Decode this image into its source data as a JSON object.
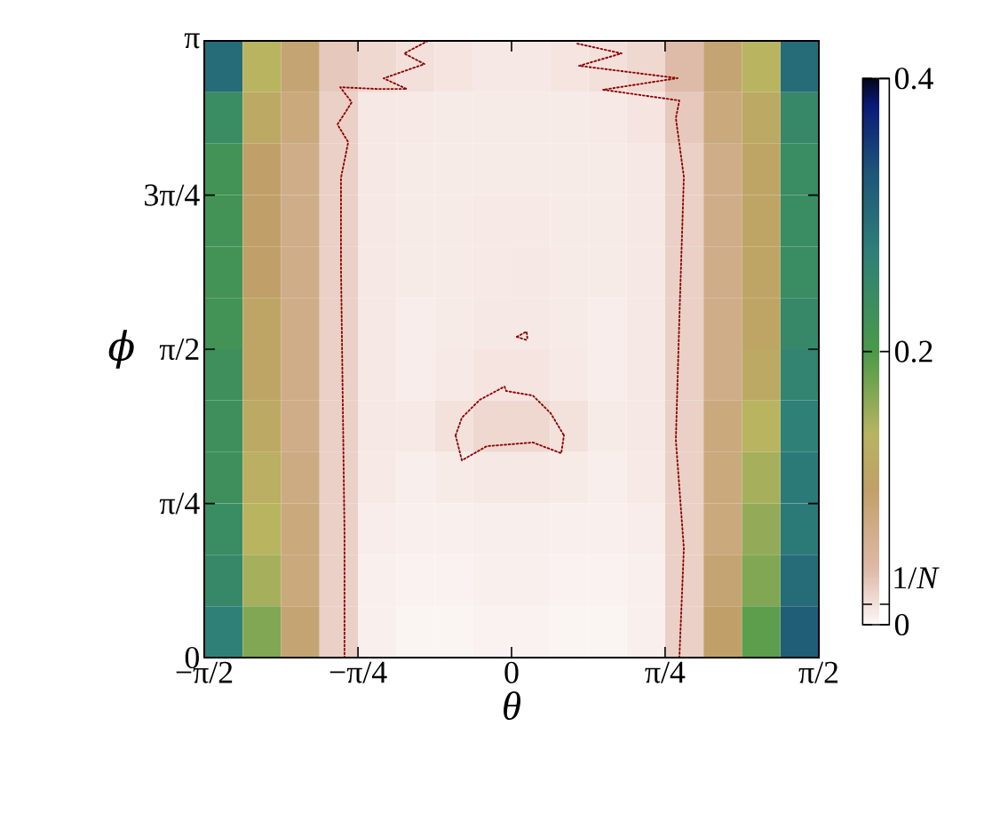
{
  "chart_data": {
    "type": "heatmap",
    "xlabel": "θ",
    "ylabel": "ϕ",
    "xlim": [
      -1.571,
      1.571
    ],
    "ylim": [
      0,
      3.142
    ],
    "xticks": [
      {
        "value": -1.571,
        "label": "−π/2"
      },
      {
        "value": -0.785,
        "label": "−π/4"
      },
      0,
      {
        "value": 0.785,
        "label": "π/4"
      },
      {
        "value": 1.571,
        "label": "π/2"
      }
    ],
    "yticks": [
      0,
      {
        "value": 0.785,
        "label": "π/4"
      },
      {
        "value": 1.571,
        "label": "π/2"
      },
      {
        "value": 2.356,
        "label": "3π/4"
      },
      {
        "value": 3.142,
        "label": "π"
      }
    ],
    "clim": [
      0,
      0.4
    ],
    "cticks": [
      0,
      {
        "value": 0.015,
        "label": null
      },
      0.2,
      0.4
    ],
    "annotations": [
      "1/*N*"
    ],
    "cells": [
      [
        0.3,
        0.14,
        0.09,
        0.03,
        0.02,
        0.015,
        0.012,
        0.01,
        0.01,
        0.012,
        0.015,
        0.02,
        0.04,
        0.09,
        0.14,
        0.3
      ],
      [
        0.24,
        0.12,
        0.08,
        0.025,
        0.01,
        0.009,
        0.008,
        0.008,
        0.008,
        0.008,
        0.009,
        0.012,
        0.03,
        0.08,
        0.12,
        0.25
      ],
      [
        0.22,
        0.1,
        0.07,
        0.025,
        0.01,
        0.008,
        0.008,
        0.008,
        0.008,
        0.008,
        0.008,
        0.01,
        0.025,
        0.07,
        0.11,
        0.24
      ],
      [
        0.22,
        0.1,
        0.07,
        0.025,
        0.01,
        0.008,
        0.008,
        0.009,
        0.009,
        0.008,
        0.008,
        0.01,
        0.025,
        0.07,
        0.11,
        0.24
      ],
      [
        0.22,
        0.1,
        0.07,
        0.025,
        0.01,
        0.008,
        0.008,
        0.009,
        0.01,
        0.008,
        0.008,
        0.01,
        0.025,
        0.07,
        0.11,
        0.24
      ],
      [
        0.22,
        0.11,
        0.07,
        0.025,
        0.01,
        0.007,
        0.008,
        0.01,
        0.01,
        0.008,
        0.007,
        0.01,
        0.025,
        0.07,
        0.11,
        0.25
      ],
      [
        0.23,
        0.11,
        0.07,
        0.025,
        0.01,
        0.007,
        0.009,
        0.012,
        0.012,
        0.009,
        0.007,
        0.01,
        0.025,
        0.07,
        0.12,
        0.26
      ],
      [
        0.23,
        0.12,
        0.07,
        0.025,
        0.01,
        0.009,
        0.014,
        0.02,
        0.02,
        0.014,
        0.008,
        0.01,
        0.025,
        0.08,
        0.14,
        0.27
      ],
      [
        0.23,
        0.13,
        0.075,
        0.025,
        0.009,
        0.006,
        0.008,
        0.01,
        0.01,
        0.008,
        0.006,
        0.009,
        0.025,
        0.08,
        0.15,
        0.28
      ],
      [
        0.24,
        0.14,
        0.08,
        0.025,
        0.007,
        0.005,
        0.005,
        0.006,
        0.006,
        0.005,
        0.005,
        0.007,
        0.025,
        0.08,
        0.16,
        0.28
      ],
      [
        0.25,
        0.15,
        0.08,
        0.025,
        0.005,
        0.004,
        0.004,
        0.005,
        0.005,
        0.004,
        0.004,
        0.005,
        0.025,
        0.09,
        0.17,
        0.3
      ],
      [
        0.27,
        0.17,
        0.09,
        0.025,
        0.005,
        0.003,
        0.003,
        0.004,
        0.004,
        0.003,
        0.003,
        0.005,
        0.025,
        0.1,
        0.19,
        0.32
      ]
    ],
    "line_style": "dotted",
    "series": [
      {
        "type": "line",
        "color": "#8b0000",
        "x": [
          -0.427,
          -0.549,
          -0.445,
          -0.654,
          -0.536,
          -0.686,
          -0.876,
          -0.817,
          -0.89,
          -0.835,
          -0.872,
          -0.872,
          -0.863,
          -0.854,
          -0.854
        ],
        "values": [
          3.142,
          3.078,
          3.024,
          2.951,
          2.897,
          2.897,
          2.906,
          2.829,
          2.716,
          2.626,
          2.445,
          1.992,
          1.313,
          0.634,
          0
        ]
      },
      {
        "type": "line",
        "color": "#8b0000",
        "x": [
          0.336,
          0.563,
          0.345,
          0.849,
          0.468,
          0.858,
          0.84,
          0.881,
          0.858,
          0.84,
          0.881,
          0.858
        ],
        "values": [
          3.128,
          3.078,
          3.015,
          2.952,
          2.893,
          2.838,
          2.748,
          2.449,
          1.729,
          1.109,
          0.557,
          0
        ]
      },
      {
        "type": "line",
        "color": "#8b0000",
        "x": [
          -0.286,
          -0.254,
          -0.163,
          -0.036,
          -0.027,
          0.109,
          0.2,
          0.268
        ],
        "values": [
          1.132,
          1.222,
          1.313,
          1.381,
          1.358,
          1.335,
          1.245,
          1.132
        ]
      },
      {
        "type": "line",
        "color": "#8b0000",
        "x": [
          -0.286,
          -0.254,
          -0.127,
          0.109,
          0.254,
          0.268
        ],
        "values": [
          1.132,
          1.005,
          1.077,
          1.096,
          1.041,
          1.132
        ]
      },
      {
        "type": "line",
        "color": "#8b0000",
        "x": [
          0.027,
          0.077,
          0.082
        ],
        "values": [
          1.634,
          1.661,
          1.616
        ]
      },
      {
        "type": "line",
        "color": "#8b0000",
        "x": [
          0.027,
          0.082
        ],
        "values": [
          1.634,
          1.616
        ]
      }
    ]
  }
}
